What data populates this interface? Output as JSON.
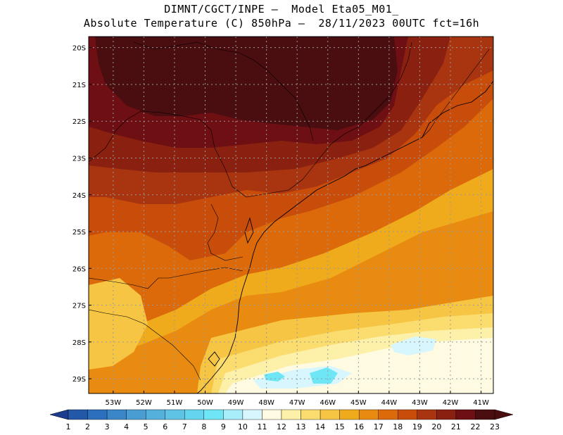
{
  "header": {
    "line1": "DIMNT/CGCT/INPE –  Model Eta05_M01_",
    "line2": "Absolute Temperature (C) 850hPa –  28/11/2023 00UTC fct=16h"
  },
  "map": {
    "lat_labels": [
      "20S",
      "21S",
      "22S",
      "23S",
      "24S",
      "25S",
      "26S",
      "27S",
      "28S",
      "29S"
    ],
    "lon_labels": [
      "53W",
      "52W",
      "51W",
      "50W",
      "49W",
      "48W",
      "47W",
      "46W",
      "45W",
      "44W",
      "43W",
      "42W",
      "41W"
    ],
    "lat_values": [
      -20,
      -21,
      -22,
      -23,
      -24,
      -25,
      -26,
      -27,
      -28,
      -29
    ],
    "lon_values": [
      -53,
      -52,
      -51,
      -50,
      -49,
      -48,
      -47,
      -46,
      -45,
      -44,
      -43,
      -42,
      -41
    ],
    "extent": {
      "lon_min": -53.8,
      "lon_max": -40.6,
      "lat_max": -19.7,
      "lat_min": -29.4
    },
    "grid_style": "dotted"
  },
  "colorbar": {
    "labels": [
      "1",
      "2",
      "3",
      "4",
      "5",
      "6",
      "7",
      "8",
      "9",
      "10",
      "11",
      "12",
      "13",
      "14",
      "15",
      "16",
      "17",
      "18",
      "19",
      "20",
      "21",
      "22",
      "23"
    ],
    "colors": [
      "#1c3d8f",
      "#2358a8",
      "#2c6fbc",
      "#3a86c8",
      "#4a9dd2",
      "#55b0dc",
      "#5fc3e6",
      "#63d5ef",
      "#6ee6f6",
      "#a8eefa",
      "#d8f6fd",
      "#fffbe2",
      "#fdf0a8",
      "#fadd6e",
      "#f5c543",
      "#f0ab1d",
      "#e88b10",
      "#dc6a0b",
      "#c94d0a",
      "#a83510",
      "#8a2110",
      "#6e0f14",
      "#4a0d10"
    ],
    "min_arrow_color": "#1c3d8f",
    "max_arrow_color": "#4a0d10"
  },
  "coastline_color": "#000000"
}
